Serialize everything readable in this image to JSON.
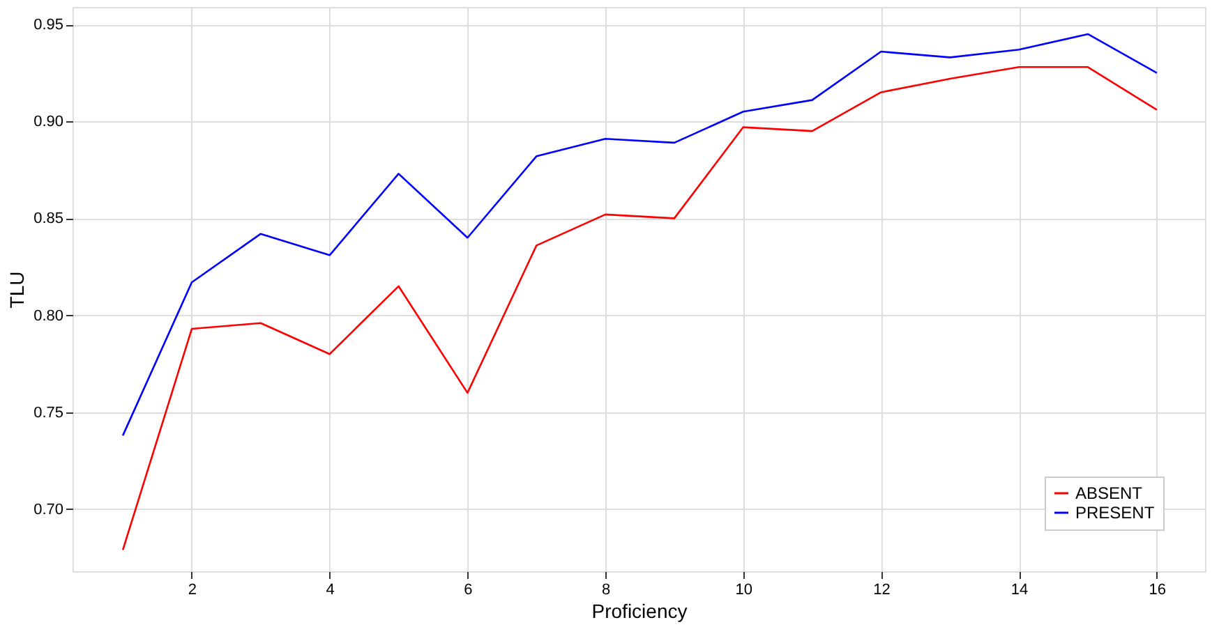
{
  "chart_data": {
    "type": "line",
    "xlabel": "Proficiency",
    "ylabel": "TLU",
    "x": [
      1,
      2,
      3,
      4,
      5,
      6,
      7,
      8,
      9,
      10,
      11,
      12,
      13,
      14,
      15,
      16
    ],
    "series": [
      {
        "name": "ABSENT",
        "color": "#ff0000",
        "values": [
          0.679,
          0.793,
          0.796,
          0.78,
          0.815,
          0.76,
          0.836,
          0.852,
          0.85,
          0.897,
          0.895,
          0.915,
          0.922,
          0.928,
          0.928,
          0.906
        ]
      },
      {
        "name": "PRESENT",
        "color": "#0000ff",
        "values": [
          0.738,
          0.817,
          0.842,
          0.831,
          0.873,
          0.84,
          0.882,
          0.891,
          0.889,
          0.905,
          0.911,
          0.936,
          0.933,
          0.937,
          0.945,
          0.925
        ]
      }
    ],
    "xlim": [
      0.27,
      16.7
    ],
    "ylim": [
      0.668,
      0.959
    ],
    "xticks": [
      2,
      4,
      6,
      8,
      10,
      12,
      14,
      16
    ],
    "yticks": [
      {
        "value": 0.7,
        "label": "0.70"
      },
      0.75,
      {
        "value": 0.8,
        "label": "0.80"
      },
      0.85,
      {
        "value": 0.9,
        "label": "0.90"
      },
      0.95
    ],
    "grid": true,
    "legend": "bottom right",
    "marker": "none",
    "line_style": "solid"
  }
}
